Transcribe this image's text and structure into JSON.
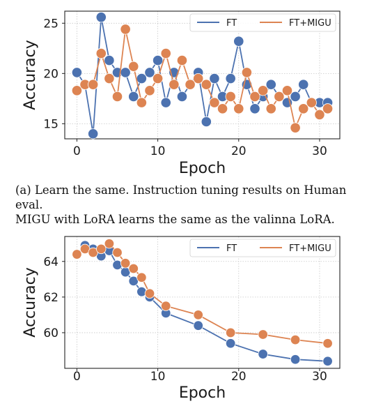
{
  "colors": {
    "ft": "#4c72b0",
    "ft_migu": "#dd8452"
  },
  "caption": {
    "line1": "(a) Learn the same. Instruction tuning results on Human eval.",
    "line2": "MIGU with LoRA learns the same as the valinna LoRA."
  },
  "chart_data": [
    {
      "type": "line",
      "xlabel": "Epoch",
      "ylabel": "Accuracy",
      "xlim": [
        -1.5,
        32.5
      ],
      "ylim": [
        13.5,
        26.2
      ],
      "xticks": [
        0,
        10,
        20,
        30
      ],
      "yticks": [
        15,
        20,
        25
      ],
      "grid": true,
      "legend": "top",
      "series": [
        {
          "name": "FT",
          "color": "#4c72b0",
          "x": [
            0,
            1,
            2,
            3,
            4,
            5,
            6,
            7,
            8,
            9,
            10,
            11,
            12,
            13,
            14,
            15,
            16,
            17,
            18,
            19,
            20,
            21,
            22,
            23,
            24,
            25,
            26,
            27,
            28,
            29,
            30,
            31
          ],
          "y": [
            20.1,
            18.9,
            14.0,
            25.6,
            21.3,
            20.1,
            20.1,
            17.7,
            19.5,
            20.1,
            21.3,
            17.1,
            20.1,
            17.7,
            18.9,
            20.1,
            15.2,
            19.5,
            17.7,
            19.5,
            23.2,
            18.9,
            16.5,
            17.7,
            18.9,
            17.7,
            17.1,
            17.7,
            18.9,
            17.1,
            17.1,
            17.1
          ]
        },
        {
          "name": "FT+MIGU",
          "color": "#dd8452",
          "x": [
            0,
            1,
            2,
            3,
            4,
            5,
            6,
            7,
            8,
            9,
            10,
            11,
            12,
            13,
            14,
            15,
            16,
            17,
            18,
            19,
            20,
            21,
            22,
            23,
            24,
            25,
            26,
            27,
            28,
            29,
            30,
            31
          ],
          "y": [
            18.3,
            18.9,
            18.9,
            22.0,
            19.5,
            17.7,
            24.4,
            20.7,
            17.1,
            18.3,
            19.5,
            22.0,
            18.9,
            21.3,
            18.9,
            19.5,
            18.9,
            17.1,
            16.5,
            17.7,
            16.5,
            20.1,
            17.7,
            18.3,
            16.5,
            17.7,
            18.3,
            14.6,
            16.5,
            17.1,
            15.9,
            16.5
          ]
        }
      ]
    },
    {
      "type": "line",
      "xlabel": "Epoch",
      "ylabel": "Accuracy",
      "xlim": [
        -1.5,
        32.5
      ],
      "ylim": [
        58.0,
        65.4
      ],
      "xticks": [
        0,
        10,
        20,
        30
      ],
      "yticks": [
        60,
        62,
        64
      ],
      "grid": true,
      "legend": "top",
      "series": [
        {
          "name": "FT",
          "color": "#4c72b0",
          "x": [
            0,
            1,
            2,
            3,
            4,
            5,
            6,
            7,
            8,
            9,
            11,
            15,
            19,
            23,
            27,
            31
          ],
          "y": [
            64.4,
            64.9,
            64.7,
            64.3,
            64.6,
            63.8,
            63.4,
            62.9,
            62.3,
            62.0,
            61.1,
            60.4,
            59.4,
            58.8,
            58.5,
            58.4
          ]
        },
        {
          "name": "FT+MIGU",
          "color": "#dd8452",
          "x": [
            0,
            1,
            2,
            3,
            4,
            5,
            6,
            7,
            8,
            9,
            11,
            15,
            19,
            23,
            27,
            31
          ],
          "y": [
            64.4,
            64.7,
            64.5,
            64.7,
            65.0,
            64.5,
            63.9,
            63.6,
            63.1,
            62.2,
            61.5,
            61.0,
            60.0,
            59.9,
            59.6,
            59.4
          ]
        }
      ]
    }
  ]
}
